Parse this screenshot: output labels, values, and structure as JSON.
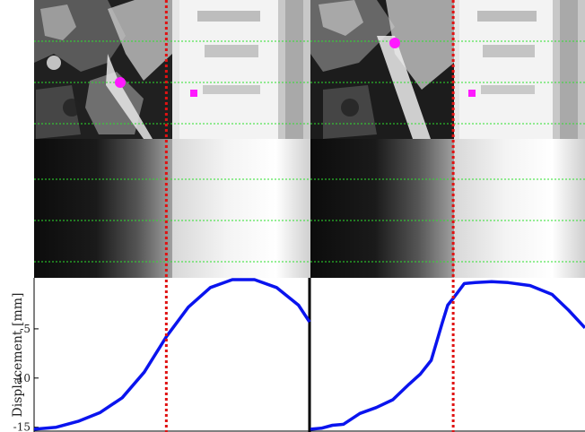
{
  "colors": {
    "trajectory": "#0a14ee",
    "marker": "#ff19ff",
    "sync_line": "#e01212",
    "grid_line": "#2ee02e",
    "separator": "#000000"
  },
  "chart_data": {
    "type": "line",
    "ylabel": "Displacement [mm]",
    "ylim": [
      -15.3,
      0
    ],
    "yticks": [
      -5,
      -10,
      -15
    ],
    "ytick_labels": [
      "-5",
      "-10",
      "-15"
    ],
    "grid": false,
    "panels": [
      {
        "name": "left",
        "x_range": [
          0,
          1
        ],
        "sync_x": 0.48,
        "x": [
          0.0,
          0.08,
          0.16,
          0.24,
          0.32,
          0.4,
          0.48,
          0.56,
          0.64,
          0.72,
          0.8,
          0.88,
          0.96,
          1.0
        ],
        "values": [
          -15.2,
          -15.0,
          -14.4,
          -13.5,
          -12.0,
          -9.4,
          -5.8,
          -2.8,
          -0.8,
          0.0,
          0.0,
          -0.8,
          -2.6,
          -4.3
        ]
      },
      {
        "name": "right",
        "x_range": [
          0,
          1
        ],
        "sync_x": 0.52,
        "x": [
          0.0,
          0.04,
          0.08,
          0.12,
          0.18,
          0.24,
          0.3,
          0.36,
          0.4,
          0.44,
          0.48,
          0.5,
          0.52,
          0.56,
          0.6,
          0.66,
          0.72,
          0.8,
          0.88,
          0.94,
          1.0
        ],
        "values": [
          -15.2,
          -15.1,
          -14.8,
          -14.7,
          -13.6,
          -13.0,
          -12.2,
          -10.6,
          -9.6,
          -8.2,
          -4.4,
          -2.6,
          -1.9,
          -0.4,
          -0.3,
          -0.2,
          -0.3,
          -0.6,
          -1.5,
          -3.1,
          -4.9
        ]
      }
    ]
  },
  "image_panels": {
    "grid_rows": 3,
    "markers": [
      {
        "panel": "left",
        "shape": "circle"
      },
      {
        "panel": "left",
        "shape": "square"
      },
      {
        "panel": "right",
        "shape": "circle"
      },
      {
        "panel": "right",
        "shape": "square"
      }
    ]
  }
}
